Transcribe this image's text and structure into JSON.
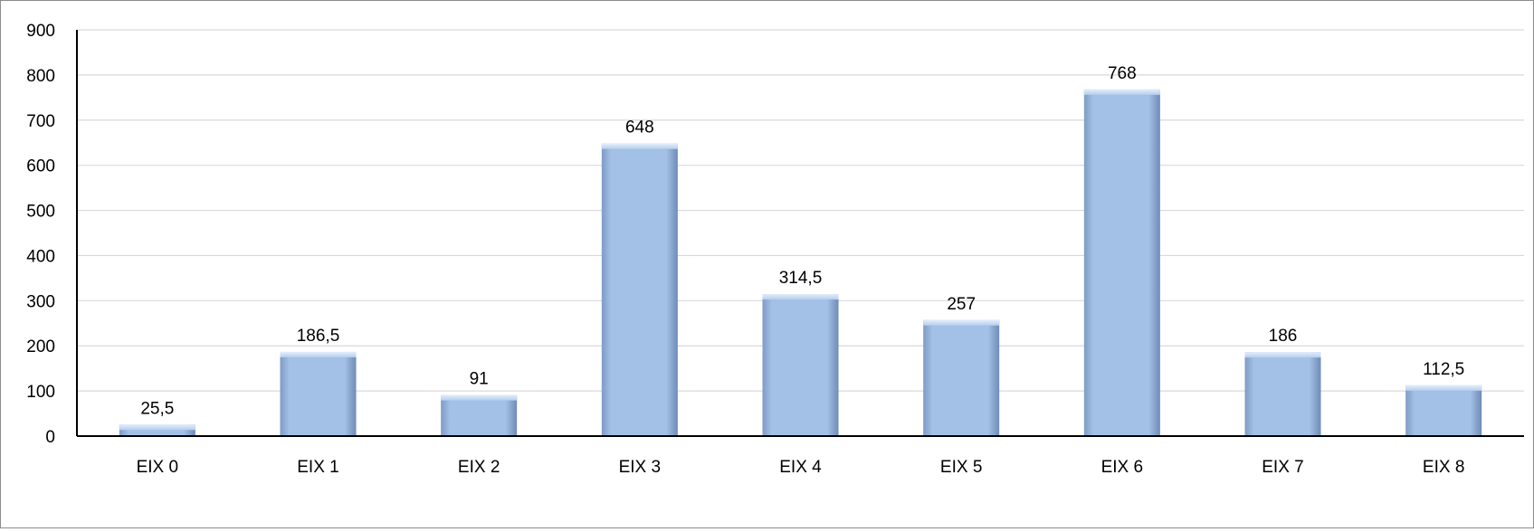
{
  "chart_data": {
    "type": "bar",
    "title": "",
    "xlabel": "",
    "ylabel": "",
    "categories": [
      "EIX 0",
      "EIX 1",
      "EIX 2",
      "EIX 3",
      "EIX 4",
      "EIX 5",
      "EIX 6",
      "EIX 7",
      "EIX 8"
    ],
    "values": [
      25.5,
      186.5,
      91,
      648,
      314.5,
      257,
      768,
      186,
      112.5
    ],
    "data_labels": [
      "25,5",
      "186,5",
      "91",
      "648",
      "314,5",
      "257",
      "768",
      "186",
      "112,5"
    ],
    "ylim": [
      0,
      900
    ],
    "yticks": [
      0,
      100,
      200,
      300,
      400,
      500,
      600,
      700,
      800,
      900
    ],
    "grid": true,
    "legend": "none",
    "colors": {
      "bar_fill": "#9fbee6",
      "bar_top": "#c9dcf3",
      "bar_side": "#7b97c2",
      "grid": "#d9d9d9",
      "axis": "#000000"
    }
  }
}
